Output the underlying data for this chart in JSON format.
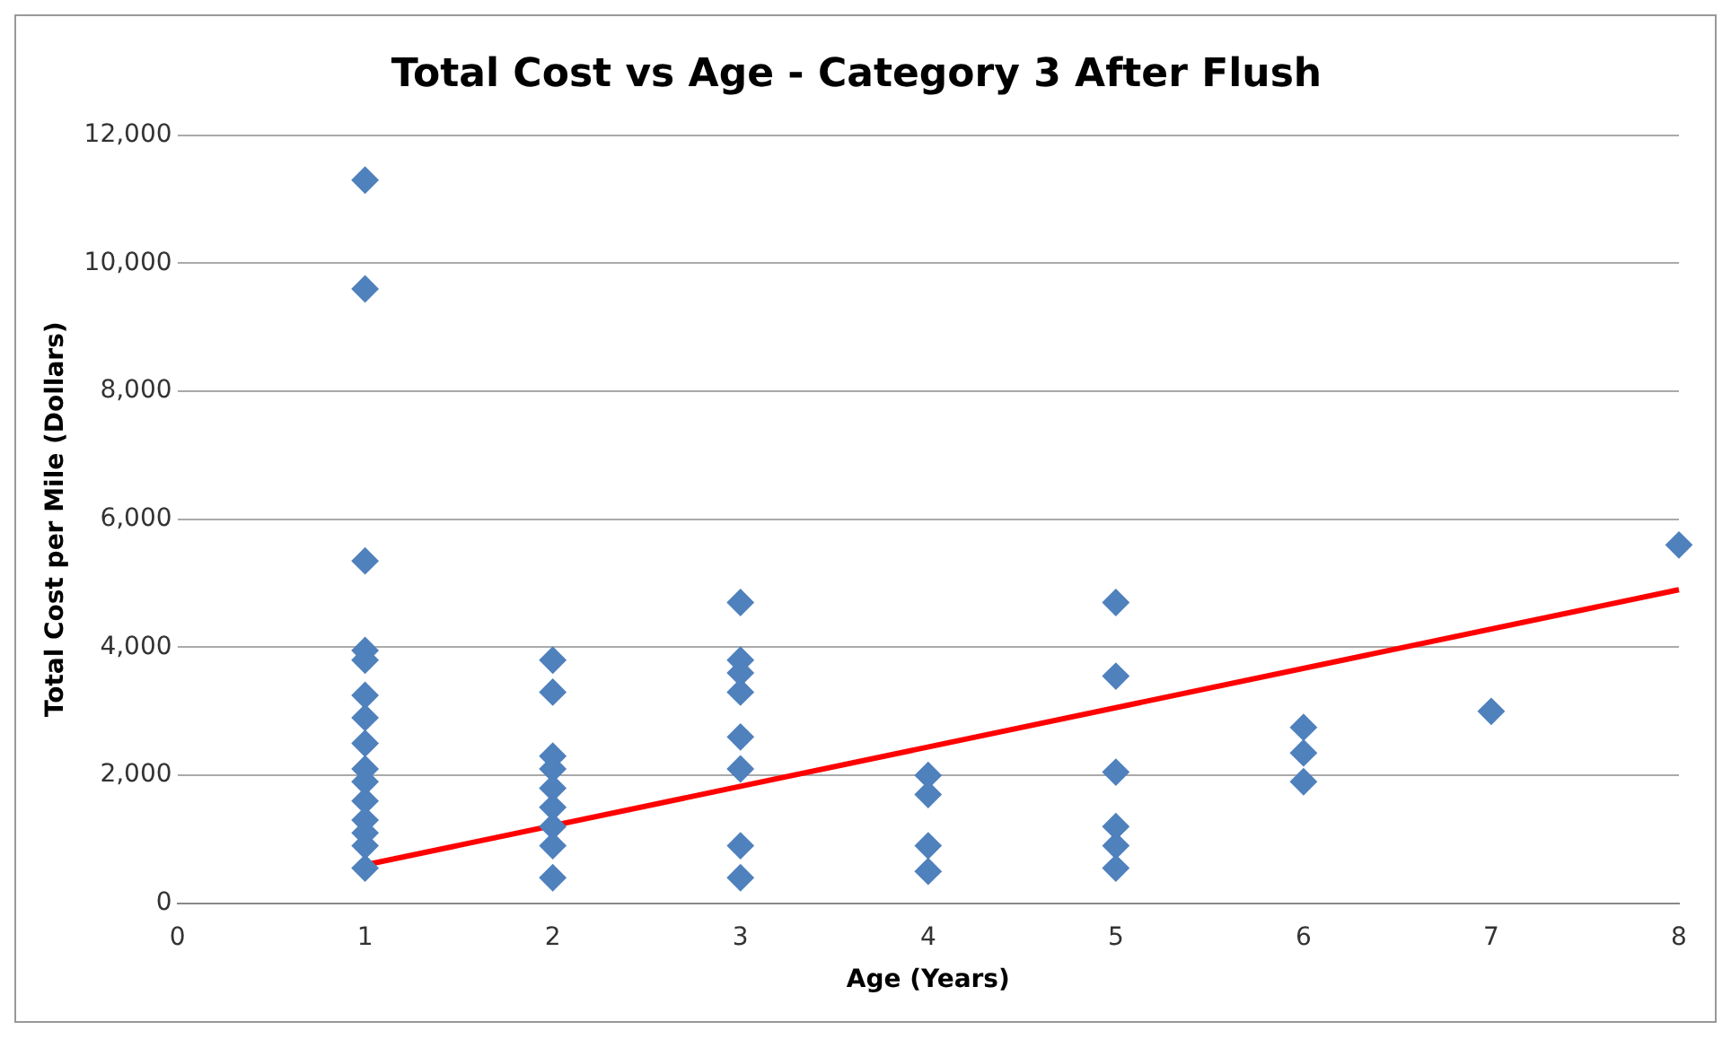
{
  "chart_data": {
    "type": "scatter",
    "title": "Total Cost vs Age - Category 3 After Flush",
    "xlabel": "Age (Years)",
    "ylabel": "Total Cost per Mile (Dollars)",
    "xlim": [
      0,
      8
    ],
    "xticks": [
      0,
      1,
      2,
      3,
      4,
      5,
      6,
      7,
      8
    ],
    "ylim": [
      0,
      12000
    ],
    "yticks": [
      {
        "value": 0,
        "label": "0"
      },
      {
        "value": 2000,
        "label": "2,000"
      },
      {
        "value": 4000,
        "label": "4,000"
      },
      {
        "value": 6000,
        "label": "6,000"
      },
      {
        "value": 8000,
        "label": "8,000"
      },
      {
        "value": 10000,
        "label": "10,000"
      },
      {
        "value": 12000,
        "label": "12,000"
      }
    ],
    "grid": "y",
    "series": [
      {
        "marker": "diamond",
        "color": "#4f81bd",
        "x": [
          1,
          1,
          1,
          1,
          1,
          1,
          1,
          1,
          1,
          1,
          1,
          1,
          1,
          1,
          1,
          2,
          2,
          2,
          2,
          2,
          2,
          2,
          2,
          2,
          3,
          3,
          3,
          3,
          3,
          3,
          3,
          3,
          4,
          4,
          4,
          4,
          5,
          5,
          5,
          5,
          5,
          5,
          6,
          6,
          6,
          7,
          8
        ],
        "values": [
          11300,
          9600,
          5350,
          3950,
          3800,
          3250,
          2900,
          2500,
          2100,
          1900,
          1600,
          1300,
          1100,
          900,
          550,
          3800,
          3300,
          2300,
          2100,
          1800,
          1500,
          1200,
          900,
          400,
          4700,
          3800,
          3600,
          3300,
          2600,
          2100,
          900,
          400,
          2000,
          1700,
          900,
          500,
          4700,
          3550,
          2050,
          1200,
          900,
          550,
          2750,
          2350,
          1900,
          3000,
          5600
        ]
      },
      {
        "type": "line",
        "marker": "none",
        "color": "#ff0000",
        "x": [
          1,
          8
        ],
        "values": [
          600,
          4900
        ]
      }
    ]
  }
}
